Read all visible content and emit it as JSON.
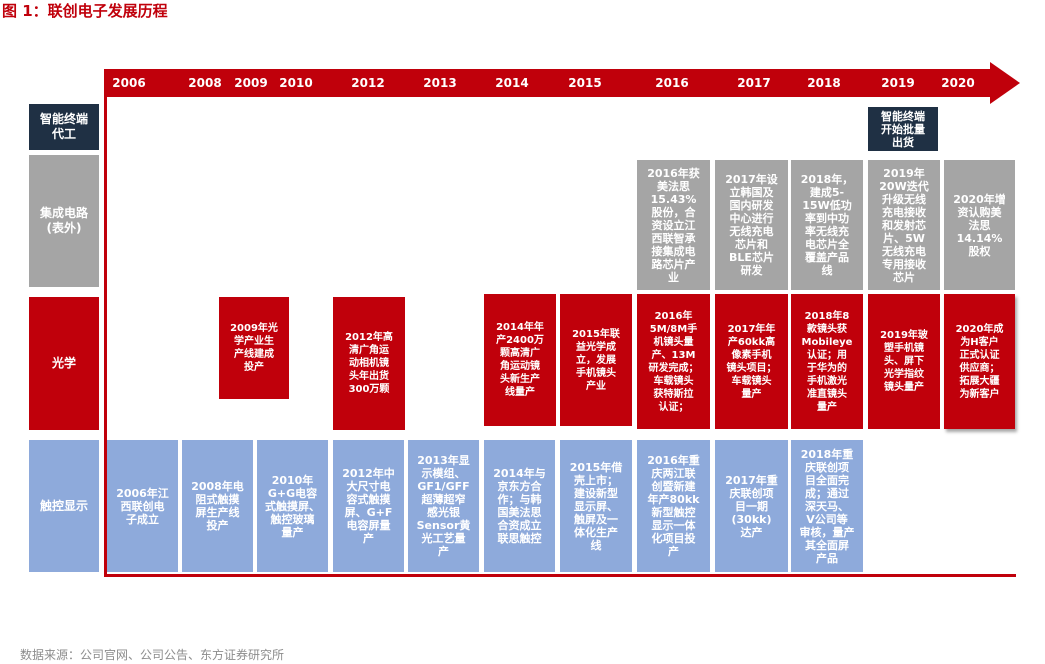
{
  "figure_title": "图 1：联创电子发展历程",
  "source": "数据来源：公司官网、公司公告、东方证券研究所",
  "years": [
    "2006",
    "2008",
    "2009",
    "2010",
    "2012",
    "2013",
    "2014",
    "2015",
    "2016",
    "2017",
    "2018",
    "2019",
    "2020"
  ],
  "rows": {
    "terminal": "智能终端\n代工",
    "ic": "集成电路\n(表外)",
    "optics": "光学",
    "touch": "触控显示"
  },
  "terminal_boxes": {
    "y2019": "智能终端\n开始批量\n出货"
  },
  "ic_boxes": {
    "y2016": "2016年获\n美法思\n15.43%\n股份，合\n资设立江\n西联智承\n接集成电\n路芯片产\n业",
    "y2017": "2017年设\n立韩国及\n国内研发\n中心进行\n无线充电\n芯片和\nBLE芯片\n研发",
    "y2018": "2018年，\n建成5-\n15W低功\n率到中功\n率无线充\n电芯片全\n覆盖产品\n线",
    "y2019": "2019年\n20W迭代\n升级无线\n充电接收\n和发射芯\n片、5W\n无线充电\n专用接收\n芯片",
    "y2020": "2020年增\n资认购美\n法思\n14.14%\n股权"
  },
  "optics_boxes": {
    "y2009": "2009年光\n学产业生\n产线建成\n投产",
    "y2012": "2012年高\n清广角运\n动相机镜\n头年出货\n300万颗",
    "y2014": "2014年年\n产2400万\n颗高清广\n角运动镜\n头新生产\n线量产",
    "y2015": "2015年联\n益光学成\n立，发展\n手机镜头\n产业",
    "y2016": "2016年\n5M/8M手\n机镜头量\n产、13M\n研发完成；\n车载镜头\n获特斯拉\n认证；",
    "y2017": "2017年年\n产60kk高\n像素手机\n镜头项目；\n车载镜头\n量产",
    "y2018": "2018年8\n款镜头获\nMobileye\n认证；用\n于华为的\n手机激光\n准直镜头\n量产",
    "y2019": "2019年玻\n塑手机镜\n头、屏下\n光学指纹\n镜头量产",
    "y2020": "2020年成\n为H客户\n正式认证\n供应商；\n拓展大疆\n为新客户"
  },
  "touch_boxes": {
    "y2006": "2006年江\n西联创电\n子成立",
    "y2008": "2008年电\n阻式触摸\n屏生产线\n投产",
    "y2010": "2010年\nG+G电容\n式触摸屏、\n触控玻璃\n量产",
    "y2012": "2012年中\n大尺寸电\n容式触摸\n屏、G+F\n电容屏量\n产",
    "y2013": "2013年显\n示模组、\nGF1/GFF\n超薄超窄\n感光银\nSensor黄\n光工艺量\n产",
    "y2014": "2014年与\n京东方合\n作；与韩\n国美法思\n合资成立\n联思触控",
    "y2015": "2015年借\n壳上市；\n建设新型\n显示屏、\n触屏及一\n体化生产\n线",
    "y2016": "2016年重\n庆两江联\n创暨新建\n年产80kk\n新型触控\n显示一体\n化项目投\n产",
    "y2017": "2017年重\n庆联创项\n目一期\n(30kk)\n达产",
    "y2018": "2018年重\n庆联创项\n目全面完\n成；通过\n深天马、\nV公司等\n审核，量产\n其全面屏\n产品"
  },
  "colors": {
    "red": "#c0000b",
    "navy": "#1f3044",
    "gray": "#a5a5a5",
    "blue": "#8eaadb"
  }
}
